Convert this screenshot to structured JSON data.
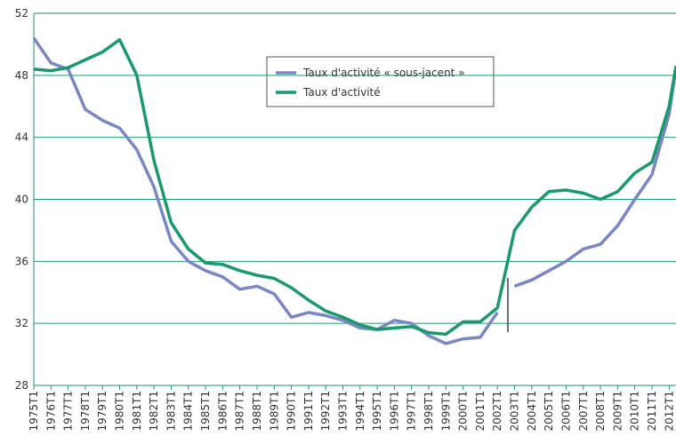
{
  "chart_data": {
    "type": "line",
    "x": [
      1975,
      1976,
      1977,
      1978,
      1979,
      1980,
      1981,
      1982,
      1983,
      1984,
      1985,
      1986,
      1987,
      1988,
      1989,
      1990,
      1991,
      1992,
      1993,
      1994,
      1995,
      1996,
      1997,
      1998,
      1999,
      2000,
      2001,
      2002,
      2002.5,
      2003,
      2004,
      2005,
      2006,
      2007,
      2008,
      2009,
      2010,
      2011,
      2012,
      2012.4
    ],
    "series": [
      {
        "name": "Taux d'activité « sous-jacent »",
        "color": "#7b86c4",
        "values": [
          50.4,
          48.8,
          48.4,
          45.8,
          45.1,
          44.6,
          43.2,
          40.8,
          37.3,
          36.0,
          35.4,
          35.0,
          34.2,
          34.4,
          33.9,
          32.4,
          32.7,
          32.5,
          32.2,
          31.7,
          31.6,
          32.2,
          32.0,
          31.2,
          30.7,
          31.0,
          31.1,
          32.7,
          null,
          34.4,
          34.8,
          35.4,
          36.0,
          36.8,
          37.1,
          38.3,
          40.0,
          41.6,
          45.5,
          48.5
        ]
      },
      {
        "name": "Taux d'activité",
        "color": "#1a9a6c",
        "values": [
          48.4,
          48.3,
          48.5,
          49.0,
          49.5,
          50.3,
          48.0,
          42.5,
          38.5,
          36.8,
          35.9,
          35.8,
          35.4,
          35.1,
          34.9,
          34.3,
          33.5,
          32.8,
          32.4,
          31.9,
          31.6,
          31.7,
          31.8,
          31.4,
          31.3,
          32.1,
          32.1,
          33.0,
          35.5,
          38.0,
          39.5,
          40.5,
          40.6,
          40.4,
          40.0,
          40.5,
          41.7,
          42.4,
          46.0,
          48.6
        ]
      }
    ],
    "xlim": [
      1975,
      2012.4
    ],
    "xticks": [
      {
        "value": 1975,
        "label": "1975T1"
      },
      {
        "value": 1976,
        "label": "1976T1"
      },
      {
        "value": 1977,
        "label": "1977T1"
      },
      {
        "value": 1978,
        "label": "1978T1"
      },
      {
        "value": 1979,
        "label": "1979T1"
      },
      {
        "value": 1980,
        "label": "1980T1"
      },
      {
        "value": 1981,
        "label": "1981T1"
      },
      {
        "value": 1982,
        "label": "1982T1"
      },
      {
        "value": 1983,
        "label": "1983T1"
      },
      {
        "value": 1984,
        "label": "1984T1"
      },
      {
        "value": 1985,
        "label": "1985T1"
      },
      {
        "value": 1986,
        "label": "1986T1"
      },
      {
        "value": 1987,
        "label": "1987T1"
      },
      {
        "value": 1988,
        "label": "1988T1"
      },
      {
        "value": 1989,
        "label": "1989T1"
      },
      {
        "value": 1990,
        "label": "1990T1"
      },
      {
        "value": 1991,
        "label": "1991T1"
      },
      {
        "value": 1992,
        "label": "1992T1"
      },
      {
        "value": 1993,
        "label": "1993T1"
      },
      {
        "value": 1994,
        "label": "1994T1"
      },
      {
        "value": 1995,
        "label": "1995T1"
      },
      {
        "value": 1996,
        "label": "1996T1"
      },
      {
        "value": 1997,
        "label": "1997T1"
      },
      {
        "value": 1998,
        "label": "1998T1"
      },
      {
        "value": 1999,
        "label": "1999T1"
      },
      {
        "value": 2000,
        "label": "2000T1"
      },
      {
        "value": 2001,
        "label": "2001T1"
      },
      {
        "value": 2002,
        "label": "2002T1"
      },
      {
        "value": 2003,
        "label": "2003T1"
      },
      {
        "value": 2004,
        "label": "2004T1"
      },
      {
        "value": 2005,
        "label": "2005T1"
      },
      {
        "value": 2006,
        "label": "2006T1"
      },
      {
        "value": 2007,
        "label": "2007T1"
      },
      {
        "value": 2008,
        "label": "2008T1"
      },
      {
        "value": 2009,
        "label": "2009T1"
      },
      {
        "value": 2010,
        "label": "2010T1"
      },
      {
        "value": 2011,
        "label": "2011T1"
      },
      {
        "value": 2012,
        "label": "2012T1"
      }
    ],
    "ylim": [
      28,
      52
    ],
    "yticks": [
      28,
      32,
      36,
      40,
      44,
      48,
      52
    ],
    "grid": true
  }
}
